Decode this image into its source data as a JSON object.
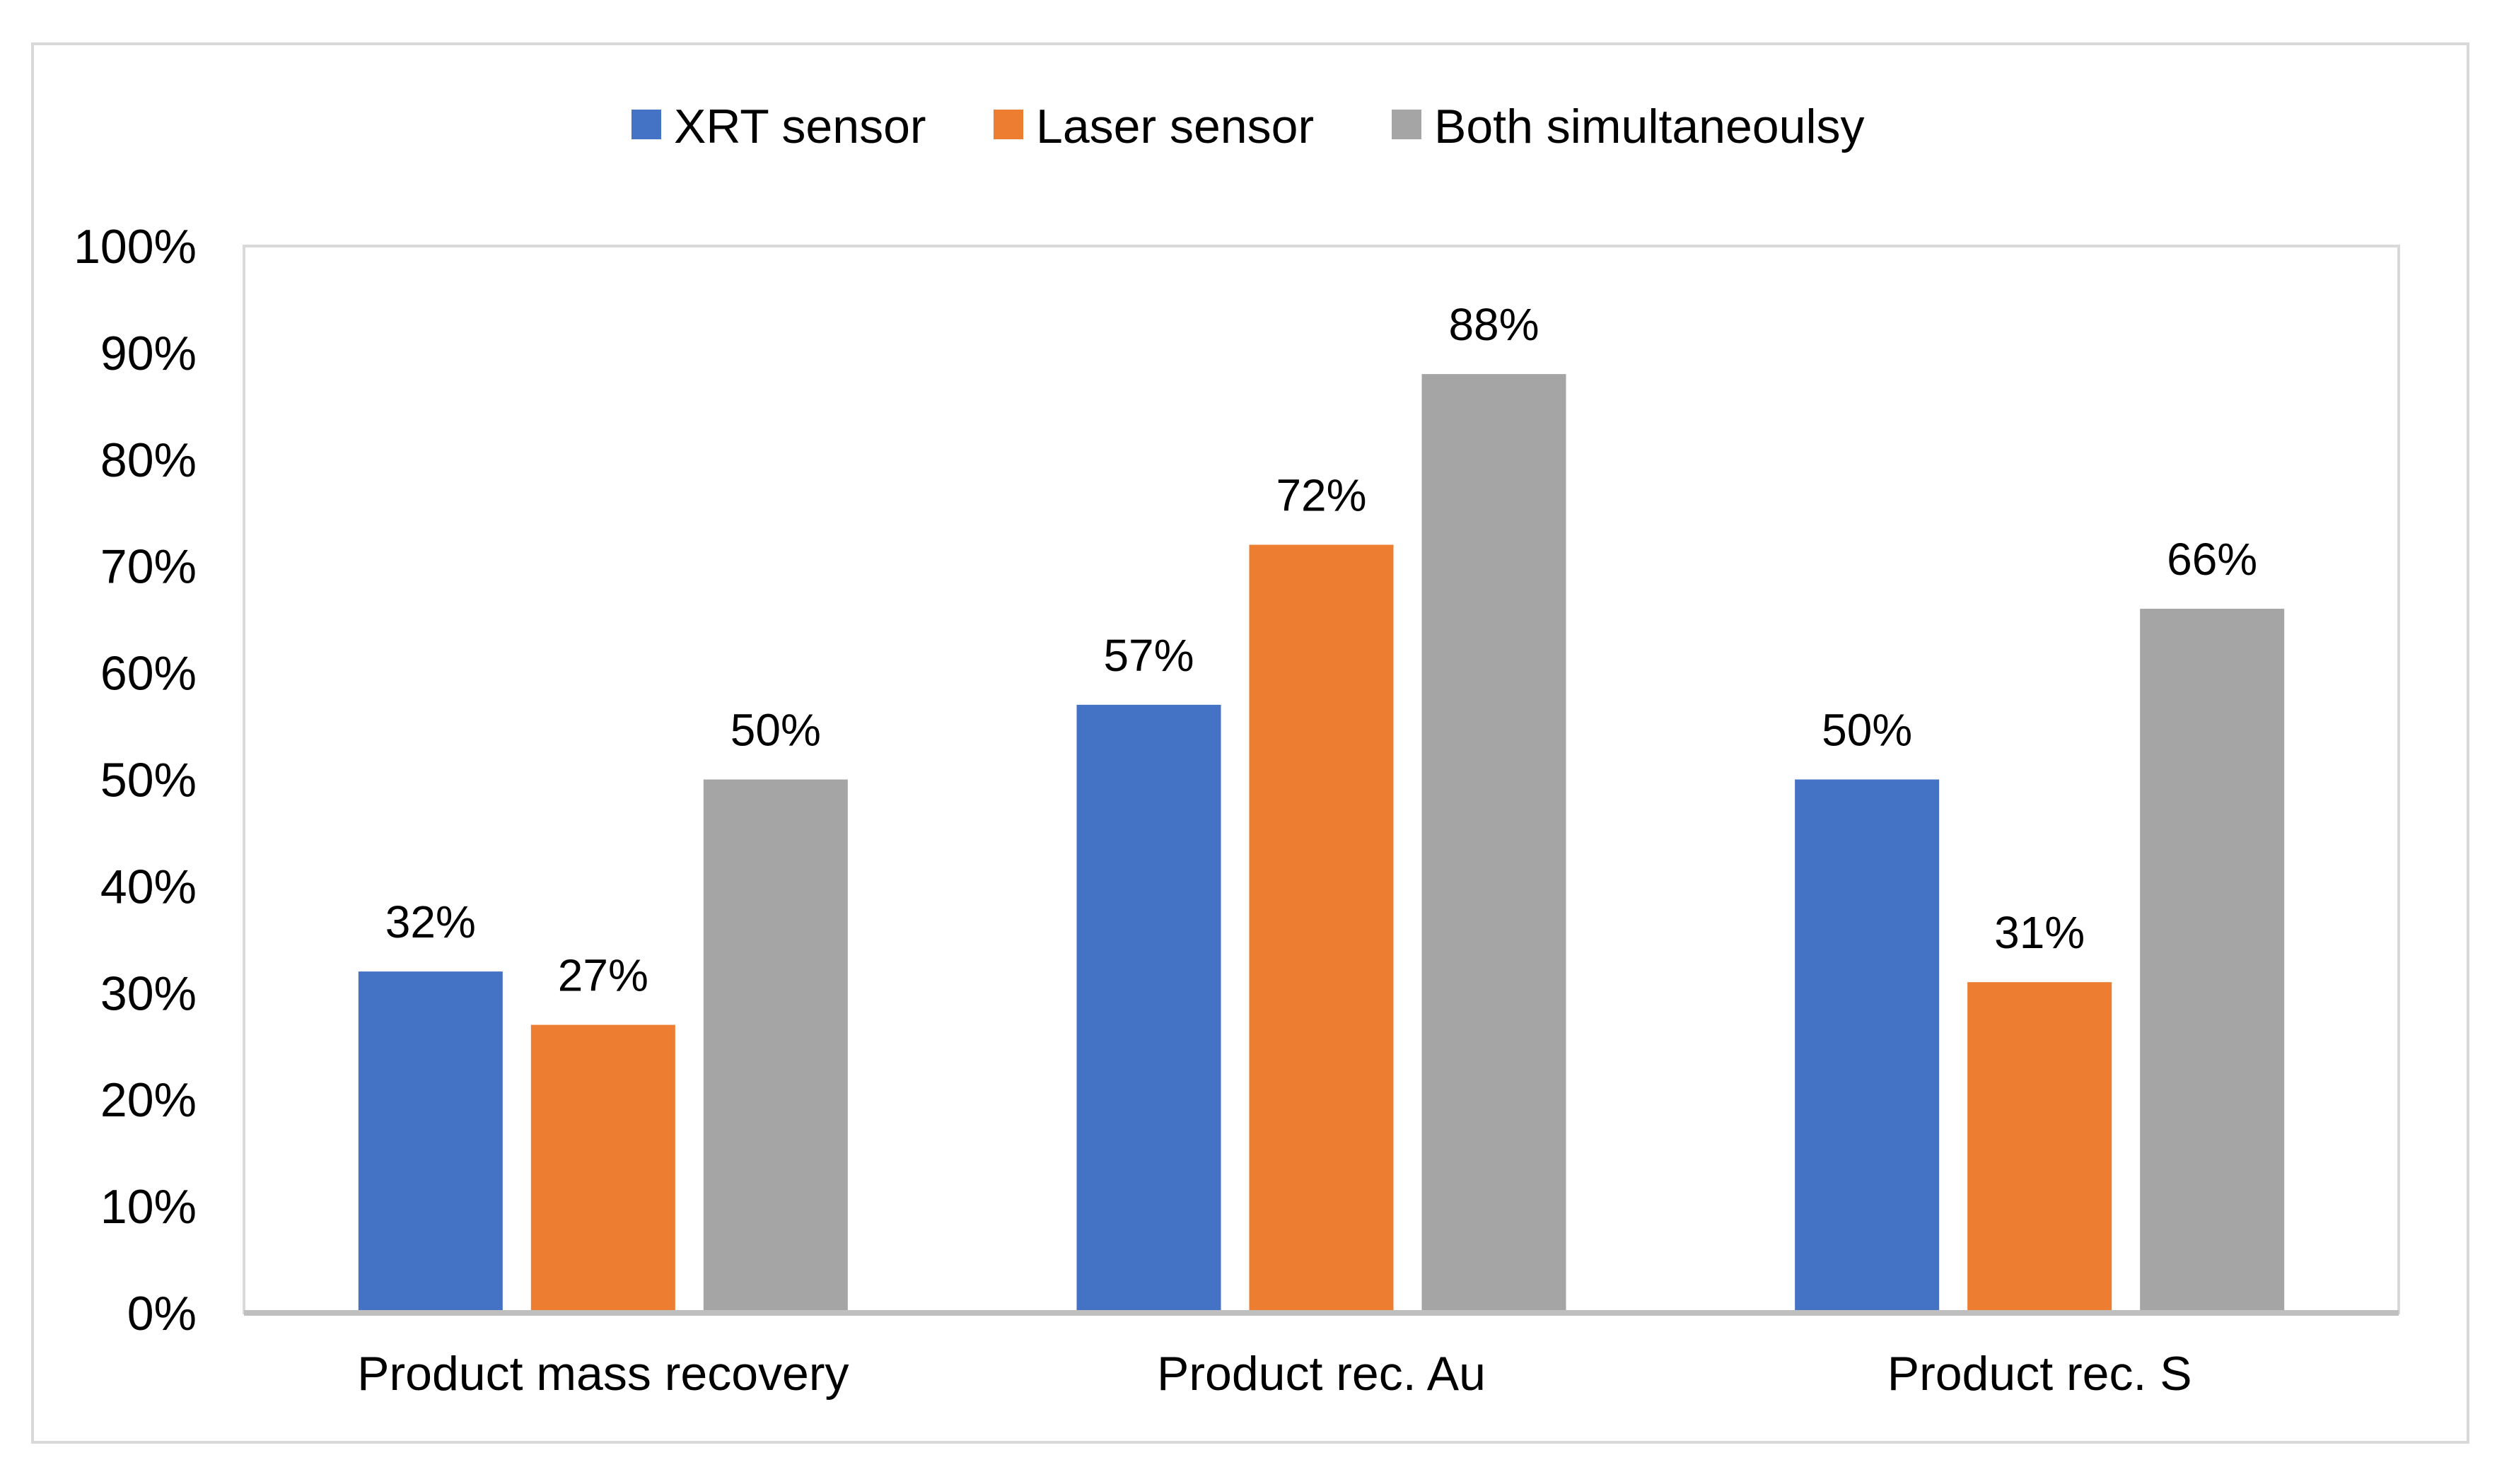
{
  "chart_data": {
    "type": "bar",
    "title": "",
    "xlabel": "",
    "ylabel": "",
    "categories": [
      "Product mass recovery",
      "Product rec. Au",
      "Product rec. S"
    ],
    "series": [
      {
        "name": "XRT sensor",
        "values": [
          32,
          57,
          50
        ],
        "labels": [
          "32%",
          "57%",
          "50%"
        ],
        "color": "#4472c4"
      },
      {
        "name": "Laser sensor",
        "values": [
          27,
          72,
          31
        ],
        "labels": [
          "27%",
          "72%",
          "31%"
        ],
        "color": "#ed7d31"
      },
      {
        "name": "Both simultaneoulsy",
        "values": [
          50,
          88,
          66
        ],
        "labels": [
          "50%",
          "88%",
          "66%"
        ],
        "color": "#a5a5a5"
      }
    ],
    "ylim": [
      0,
      100
    ],
    "yticks": [
      "0%",
      "10%",
      "20%",
      "30%",
      "40%",
      "50%",
      "60%",
      "70%",
      "80%",
      "90%",
      "100%"
    ],
    "grid": false,
    "legend": "top",
    "axis_color": "#bfbfbf",
    "frame_color": "#d9d9d9"
  }
}
